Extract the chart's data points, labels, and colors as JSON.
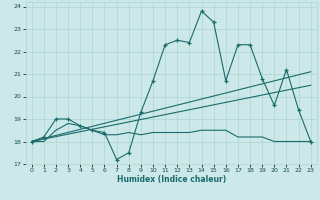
{
  "title": "",
  "xlabel": "Humidex (Indice chaleur)",
  "ylabel": "",
  "xlim": [
    -0.5,
    23.5
  ],
  "ylim": [
    17,
    24.2
  ],
  "yticks": [
    17,
    18,
    19,
    20,
    21,
    22,
    23,
    24
  ],
  "xticks": [
    0,
    1,
    2,
    3,
    4,
    5,
    6,
    7,
    8,
    9,
    10,
    11,
    12,
    13,
    14,
    15,
    16,
    17,
    18,
    19,
    20,
    21,
    22,
    23
  ],
  "bg_color": "#cce8e8",
  "line_color": "#1a6b6b",
  "series1": [
    18.0,
    18.2,
    19.0,
    19.0,
    18.7,
    18.5,
    18.4,
    17.2,
    17.5,
    19.3,
    20.7,
    22.3,
    22.5,
    22.4,
    23.8,
    23.3,
    20.7,
    22.3,
    22.3,
    20.8,
    19.6,
    21.2,
    19.4,
    18.0
  ],
  "series2": [
    18.0,
    18.0,
    18.5,
    18.8,
    18.7,
    18.5,
    18.3,
    18.3,
    18.4,
    18.3,
    18.4,
    18.4,
    18.4,
    18.4,
    18.5,
    18.5,
    18.5,
    18.2,
    18.2,
    18.2,
    18.0,
    18.0,
    18.0,
    18.0
  ],
  "trend1_x": [
    0,
    23
  ],
  "trend1_y": [
    18.0,
    21.1
  ],
  "trend2_x": [
    0,
    23
  ],
  "trend2_y": [
    18.0,
    20.5
  ]
}
